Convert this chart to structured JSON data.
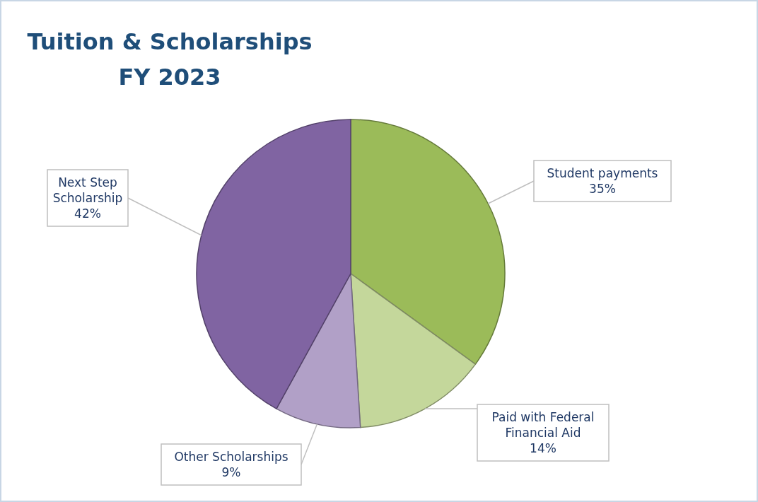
{
  "chart_data": {
    "type": "pie",
    "title": "Tuition & Scholarships",
    "subtitle": "FY 2023",
    "categories": [
      "Student payments",
      "Paid with Federal Financial Aid",
      "Other Scholarships",
      "Next Step Scholarship"
    ],
    "values": [
      35,
      14,
      9,
      42
    ],
    "colors": [
      "#9bbb59",
      "#c4d79b",
      "#b1a0c7",
      "#8064a2"
    ],
    "value_labels": [
      "35%",
      "14%",
      "9%",
      "42%"
    ]
  }
}
